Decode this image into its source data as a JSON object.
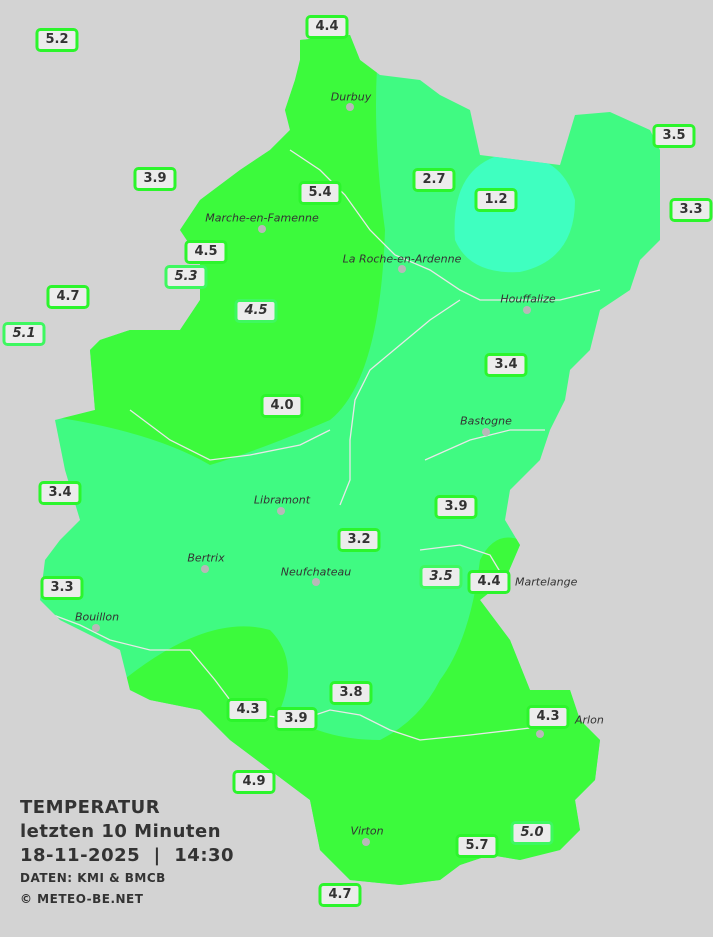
{
  "legend": {
    "title": "TEMPERATUR",
    "period": "letzten 10 Minuten",
    "datetime": "18-11-2025  |  14:30",
    "source": "DATEN: KMI & BMCB",
    "copyright": "© METEO-BE.NET"
  },
  "colors": {
    "background": "#d3d3d3",
    "temp_4_to_6": "#3cfa3c",
    "temp_2_to_4": "#40fa82",
    "temp_0_to_2": "#3fffc0",
    "station_border": "#2cf52c"
  },
  "cities": [
    "Durbuy",
    "Marche-en-Famenne",
    "La Roche-en-Ardenne",
    "Houffalize",
    "Bastogne",
    "Libramont",
    "Bertrix",
    "Neufchateau",
    "Bouillon",
    "Martelange",
    "Arlon",
    "Virton"
  ],
  "stations": [
    {
      "value": "5.2",
      "estimated": false
    },
    {
      "value": "4.4",
      "estimated": false
    },
    {
      "value": "3.9",
      "estimated": false
    },
    {
      "value": "3.5",
      "estimated": false
    },
    {
      "value": "3.3",
      "estimated": false
    },
    {
      "value": "2.7",
      "estimated": false
    },
    {
      "value": "1.2",
      "estimated": false
    },
    {
      "value": "5.4",
      "estimated": false
    },
    {
      "value": "4.5",
      "estimated": false
    },
    {
      "value": "5.3",
      "estimated": true
    },
    {
      "value": "4.7",
      "estimated": false
    },
    {
      "value": "5.1",
      "estimated": true
    },
    {
      "value": "4.5",
      "estimated": true
    },
    {
      "value": "3.4",
      "estimated": false
    },
    {
      "value": "4.0",
      "estimated": false
    },
    {
      "value": "3.4",
      "estimated": false
    },
    {
      "value": "3.9",
      "estimated": false
    },
    {
      "value": "3.2",
      "estimated": false
    },
    {
      "value": "3.5",
      "estimated": true
    },
    {
      "value": "4.4",
      "estimated": false
    },
    {
      "value": "3.3",
      "estimated": false
    },
    {
      "value": "3.8",
      "estimated": false
    },
    {
      "value": "4.3",
      "estimated": false
    },
    {
      "value": "3.9",
      "estimated": false
    },
    {
      "value": "4.3",
      "estimated": false
    },
    {
      "value": "4.9",
      "estimated": false
    },
    {
      "value": "5.7",
      "estimated": false
    },
    {
      "value": "5.0",
      "estimated": true
    },
    {
      "value": "4.7",
      "estimated": false
    }
  ]
}
